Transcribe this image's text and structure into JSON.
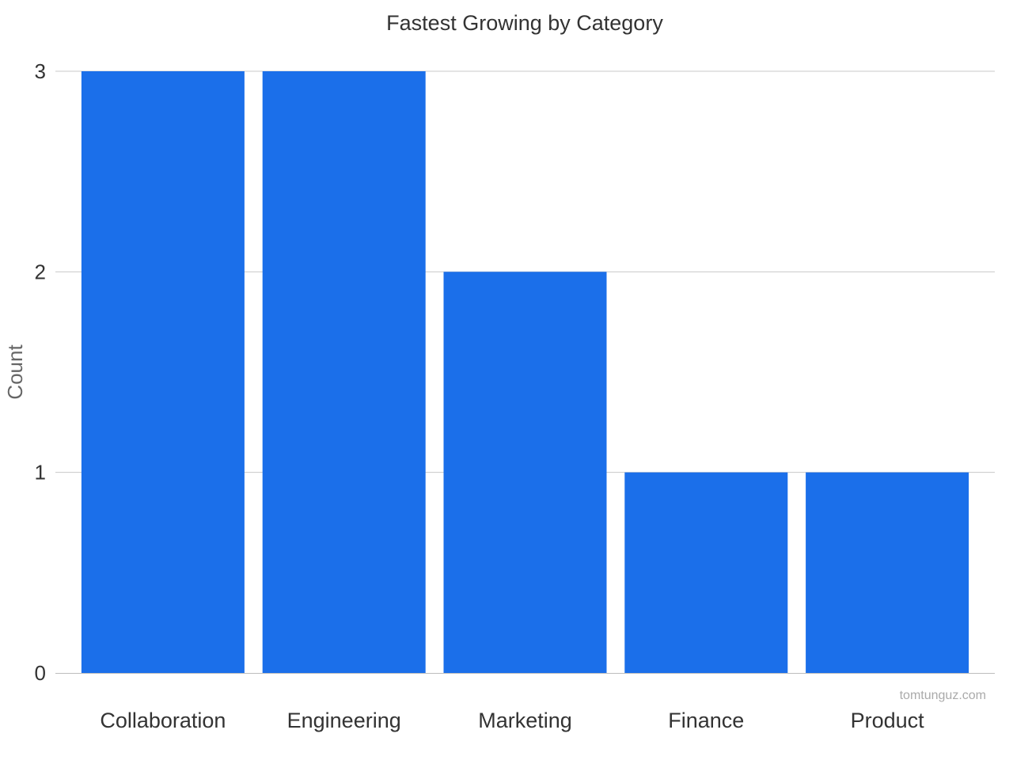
{
  "chart_data": {
    "type": "bar",
    "title": "Fastest Growing by Category",
    "xlabel": "",
    "ylabel": "Count",
    "categories": [
      "Collaboration",
      "Engineering",
      "Marketing",
      "Finance",
      "Product"
    ],
    "values": [
      3,
      3,
      2,
      1,
      1
    ],
    "ylim": [
      0,
      3
    ],
    "yticks": [
      "0",
      "1",
      "2",
      "3"
    ],
    "grid": true,
    "legend": "none",
    "bar_color": "#1b6fea"
  },
  "watermark": "tomtunguz.com"
}
